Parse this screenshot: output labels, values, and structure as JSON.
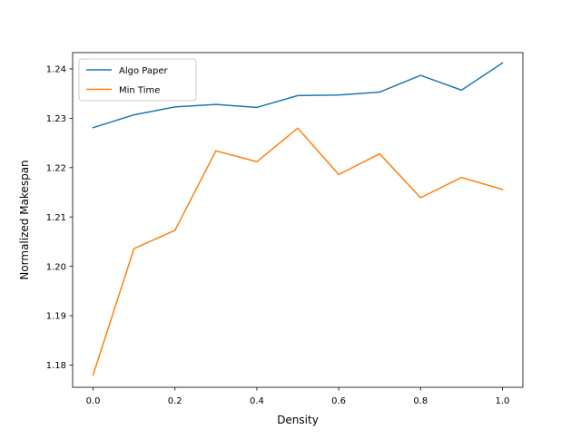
{
  "chart_data": {
    "type": "line",
    "title": "",
    "xlabel": "Density",
    "ylabel": "Normalized Makespan",
    "x": [
      0.0,
      0.1,
      0.2,
      0.3,
      0.4,
      0.5,
      0.6,
      0.7,
      0.8,
      0.9,
      1.0
    ],
    "xlim": [
      -0.05,
      1.05
    ],
    "ylim": [
      1.1755,
      1.2433
    ],
    "x_ticks": [
      0.0,
      0.2,
      0.4,
      0.6,
      0.8,
      1.0
    ],
    "x_tick_labels": [
      "0.0",
      "0.2",
      "0.4",
      "0.6",
      "0.8",
      "1.0"
    ],
    "y_ticks": [
      1.18,
      1.19,
      1.2,
      1.21,
      1.22,
      1.23,
      1.24
    ],
    "y_tick_labels": [
      "1.18",
      "1.19",
      "1.20",
      "1.21",
      "1.22",
      "1.23",
      "1.24"
    ],
    "grid": false,
    "legend_position": "top-left",
    "series": [
      {
        "name": "Algo Paper",
        "color": "#1f77b4",
        "values": [
          1.2281,
          1.2307,
          1.2323,
          1.2328,
          1.2322,
          1.2346,
          1.2347,
          1.2353,
          1.2387,
          1.2357,
          1.2412
        ]
      },
      {
        "name": "Min Time",
        "color": "#ff7f0e",
        "values": [
          1.178,
          1.2036,
          1.2073,
          1.2234,
          1.2212,
          1.228,
          1.2186,
          1.2228,
          1.2139,
          1.218,
          1.2156
        ]
      }
    ]
  }
}
